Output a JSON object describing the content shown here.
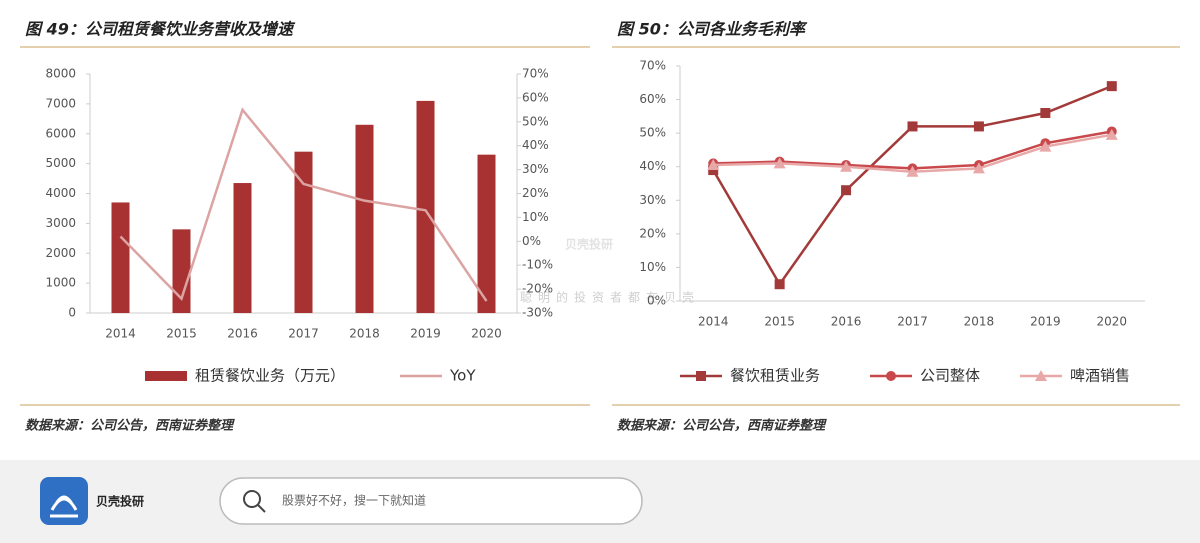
{
  "chart_data": [
    {
      "type": "bar",
      "title": "图 49：公司租赁餐饮业务营收及增速",
      "categories": [
        "2014",
        "2015",
        "2016",
        "2017",
        "2018",
        "2019",
        "2020"
      ],
      "series": [
        {
          "name": "租赁餐饮业务（万元）",
          "type": "bar",
          "color": "#a83232",
          "values": [
            3700,
            2800,
            4350,
            5400,
            6300,
            7100,
            5300
          ]
        },
        {
          "name": "YoY",
          "type": "line",
          "axis": "y2",
          "color": "#dca3a3",
          "values": [
            2,
            -24,
            55,
            24,
            17,
            13,
            -25
          ]
        }
      ],
      "ylim": [
        0,
        8000
      ],
      "yticks": [
        0,
        1000,
        2000,
        3000,
        4000,
        5000,
        6000,
        7000,
        8000
      ],
      "y2lim": [
        -30,
        70
      ],
      "y2ticks": [
        {
          "value": -30,
          "label": "-30%"
        },
        {
          "value": -20,
          "label": "-20%"
        },
        {
          "value": -10,
          "label": "-10%"
        },
        {
          "value": 0,
          "label": "0%"
        },
        {
          "value": 10,
          "label": "10%"
        },
        {
          "value": 20,
          "label": "20%"
        },
        {
          "value": 30,
          "label": "30%"
        },
        {
          "value": 40,
          "label": "40%"
        },
        {
          "value": 50,
          "label": "50%"
        },
        {
          "value": 60,
          "label": "60%"
        },
        {
          "value": 70,
          "label": "70%"
        }
      ],
      "source": "数据来源：公司公告，西南证券整理"
    },
    {
      "type": "line",
      "title": "图 50：公司各业务毛利率",
      "categories": [
        "2014",
        "2015",
        "2016",
        "2017",
        "2018",
        "2019",
        "2020"
      ],
      "series": [
        {
          "name": "餐饮租赁业务",
          "type": "line",
          "marker": "square",
          "color": "#a33a3a",
          "values": [
            39,
            5,
            33,
            52,
            52,
            56,
            64
          ]
        },
        {
          "name": "公司整体",
          "type": "line",
          "marker": "circle",
          "color": "#c8484c",
          "values": [
            41,
            41.5,
            40.5,
            39.5,
            40.5,
            47,
            50.5
          ]
        },
        {
          "name": "啤酒销售",
          "type": "line",
          "marker": "triangle",
          "color": "#e8a8a8",
          "values": [
            40.5,
            41,
            40,
            38.5,
            39.5,
            46,
            49.5
          ]
        }
      ],
      "ylim": [
        0,
        70
      ],
      "yticks": [
        {
          "value": 0,
          "label": "0%"
        },
        {
          "value": 10,
          "label": "10%"
        },
        {
          "value": 20,
          "label": "20%"
        },
        {
          "value": 30,
          "label": "30%"
        },
        {
          "value": 40,
          "label": "40%"
        },
        {
          "value": 50,
          "label": "50%"
        },
        {
          "value": 60,
          "label": "60%"
        },
        {
          "value": 70,
          "label": "70%"
        }
      ],
      "source": "数据来源：公司公告，西南证券整理"
    }
  ],
  "watermark": {
    "brand": "贝壳投研",
    "slogan": "聪明的投资者都在贝壳"
  },
  "footer": {
    "brand": "贝壳投研",
    "search_placeholder": "股票好不好，搜一下就知道"
  }
}
